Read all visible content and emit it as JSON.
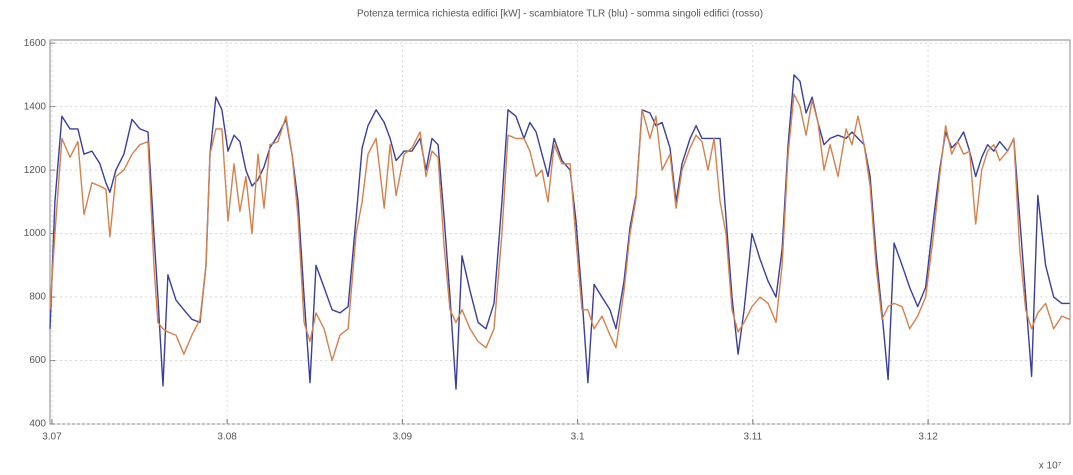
{
  "chart_data": {
    "type": "line",
    "title": "Potenza termica richiesta edifici [kW] - scambiatore TLR (blu) - somma singoli edifici (rosso)",
    "x_scale_label": "x 10⁷",
    "x": [
      3.06989,
      3.07017,
      3.07057,
      3.07103,
      3.07148,
      3.07183,
      3.07228,
      3.07274,
      3.07308,
      3.07331,
      3.07365,
      3.07411,
      3.07457,
      3.07502,
      3.07548,
      3.07582,
      3.07605,
      3.07634,
      3.07662,
      3.07708,
      3.07753,
      3.07799,
      3.07845,
      3.07879,
      3.07902,
      3.07936,
      3.0797,
      3.08005,
      3.08039,
      3.08073,
      3.08107,
      3.08142,
      3.08176,
      3.0821,
      3.08244,
      3.0829,
      3.08336,
      3.0837,
      3.08405,
      3.08439,
      3.08473,
      3.08507,
      3.08553,
      3.08599,
      3.08644,
      3.0869,
      3.08736,
      3.0877,
      3.08804,
      3.0885,
      3.08896,
      3.0893,
      3.08964,
      3.0901,
      3.09055,
      3.09101,
      3.09135,
      3.09169,
      3.09204,
      3.09238,
      3.09272,
      3.09306,
      3.0934,
      3.09386,
      3.09432,
      3.09477,
      3.09523,
      3.09568,
      3.09603,
      3.09648,
      3.09694,
      3.09728,
      3.09763,
      3.09797,
      3.09831,
      3.09866,
      3.09911,
      3.09957,
      3.09991,
      3.10025,
      3.10059,
      3.10094,
      3.10139,
      3.10185,
      3.10219,
      3.10265,
      3.10299,
      3.10333,
      3.10368,
      3.10413,
      3.10447,
      3.10482,
      3.10527,
      3.10562,
      3.10596,
      3.10642,
      3.10676,
      3.1071,
      3.10744,
      3.10779,
      3.10813,
      3.10847,
      3.10881,
      3.10916,
      3.1095,
      3.10995,
      3.11041,
      3.11087,
      3.11132,
      3.11167,
      3.11201,
      3.11235,
      3.11269,
      3.11304,
      3.11338,
      3.11372,
      3.11406,
      3.11441,
      3.11486,
      3.11532,
      3.11566,
      3.116,
      3.11635,
      3.11669,
      3.11703,
      3.11737,
      3.11772,
      3.11806,
      3.11852,
      3.11895,
      3.11941,
      3.11986,
      3.12032,
      3.12066,
      3.121,
      3.12135,
      3.12169,
      3.12203,
      3.12237,
      3.12272,
      3.12306,
      3.1234,
      3.12375,
      3.12409,
      3.12454,
      3.12489,
      3.12523,
      3.12557,
      3.12591,
      3.12626,
      3.12671,
      3.12717,
      3.12763,
      3.12808
    ],
    "series": [
      {
        "color": "#3a3f9e",
        "values": [
          700,
          1100,
          1370,
          1330,
          1330,
          1250,
          1260,
          1220,
          1160,
          1130,
          1200,
          1250,
          1360,
          1330,
          1320,
          1000,
          800,
          520,
          870,
          790,
          760,
          730,
          720,
          900,
          1250,
          1430,
          1390,
          1260,
          1310,
          1290,
          1200,
          1150,
          1170,
          1210,
          1270,
          1310,
          1360,
          1250,
          1100,
          800,
          530,
          900,
          830,
          760,
          750,
          770,
          1050,
          1270,
          1340,
          1390,
          1350,
          1300,
          1230,
          1260,
          1260,
          1300,
          1200,
          1300,
          1280,
          1050,
          800,
          510,
          930,
          820,
          720,
          700,
          780,
          1100,
          1390,
          1370,
          1300,
          1350,
          1320,
          1250,
          1180,
          1300,
          1230,
          1200,
          1040,
          800,
          530,
          840,
          800,
          760,
          700,
          850,
          1020,
          1120,
          1390,
          1380,
          1340,
          1350,
          1270,
          1100,
          1220,
          1300,
          1340,
          1300,
          1300,
          1300,
          1300,
          1050,
          800,
          620,
          760,
          1000,
          920,
          850,
          800,
          950,
          1280,
          1500,
          1480,
          1380,
          1430,
          1350,
          1280,
          1300,
          1310,
          1300,
          1320,
          1300,
          1280,
          1180,
          940,
          750,
          540,
          970,
          900,
          830,
          770,
          830,
          1050,
          1200,
          1320,
          1270,
          1290,
          1320,
          1260,
          1180,
          1240,
          1280,
          1260,
          1290,
          1260,
          1300,
          1050,
          800,
          550,
          1120,
          900,
          800,
          780,
          780
        ]
      },
      {
        "color": "#d4814c",
        "values": [
          760,
          1000,
          1300,
          1240,
          1290,
          1060,
          1160,
          1150,
          1140,
          990,
          1180,
          1200,
          1250,
          1280,
          1290,
          900,
          720,
          700,
          690,
          680,
          620,
          680,
          730,
          900,
          1250,
          1330,
          1330,
          1040,
          1220,
          1070,
          1180,
          1000,
          1250,
          1080,
          1280,
          1290,
          1370,
          1250,
          1050,
          720,
          660,
          750,
          700,
          600,
          680,
          700,
          1000,
          1100,
          1250,
          1300,
          1080,
          1280,
          1120,
          1250,
          1270,
          1320,
          1180,
          1260,
          1240,
          960,
          760,
          720,
          760,
          700,
          660,
          640,
          700,
          1000,
          1310,
          1300,
          1300,
          1260,
          1180,
          1200,
          1100,
          1280,
          1220,
          1220,
          980,
          760,
          760,
          700,
          740,
          680,
          640,
          820,
          1000,
          1110,
          1390,
          1300,
          1370,
          1200,
          1250,
          1080,
          1200,
          1270,
          1310,
          1290,
          1200,
          1300,
          1100,
          1000,
          760,
          690,
          720,
          770,
          800,
          780,
          720,
          900,
          1250,
          1440,
          1400,
          1310,
          1420,
          1350,
          1200,
          1280,
          1180,
          1330,
          1280,
          1370,
          1280,
          1150,
          900,
          730,
          770,
          780,
          770,
          700,
          740,
          800,
          1000,
          1180,
          1340,
          1250,
          1290,
          1250,
          1260,
          1030,
          1200,
          1260,
          1280,
          1230,
          1260,
          1300,
          950,
          760,
          700,
          750,
          780,
          700,
          740,
          730
        ]
      }
    ],
    "xlim": [
      3.06989,
      3.1281
    ],
    "ylim": [
      400,
      1610
    ],
    "xticks": [
      3.07,
      3.08,
      3.09,
      3.1,
      3.11,
      3.12
    ],
    "yticks": [
      400,
      600,
      800,
      1000,
      1200,
      1400,
      1600
    ],
    "grid": true
  }
}
